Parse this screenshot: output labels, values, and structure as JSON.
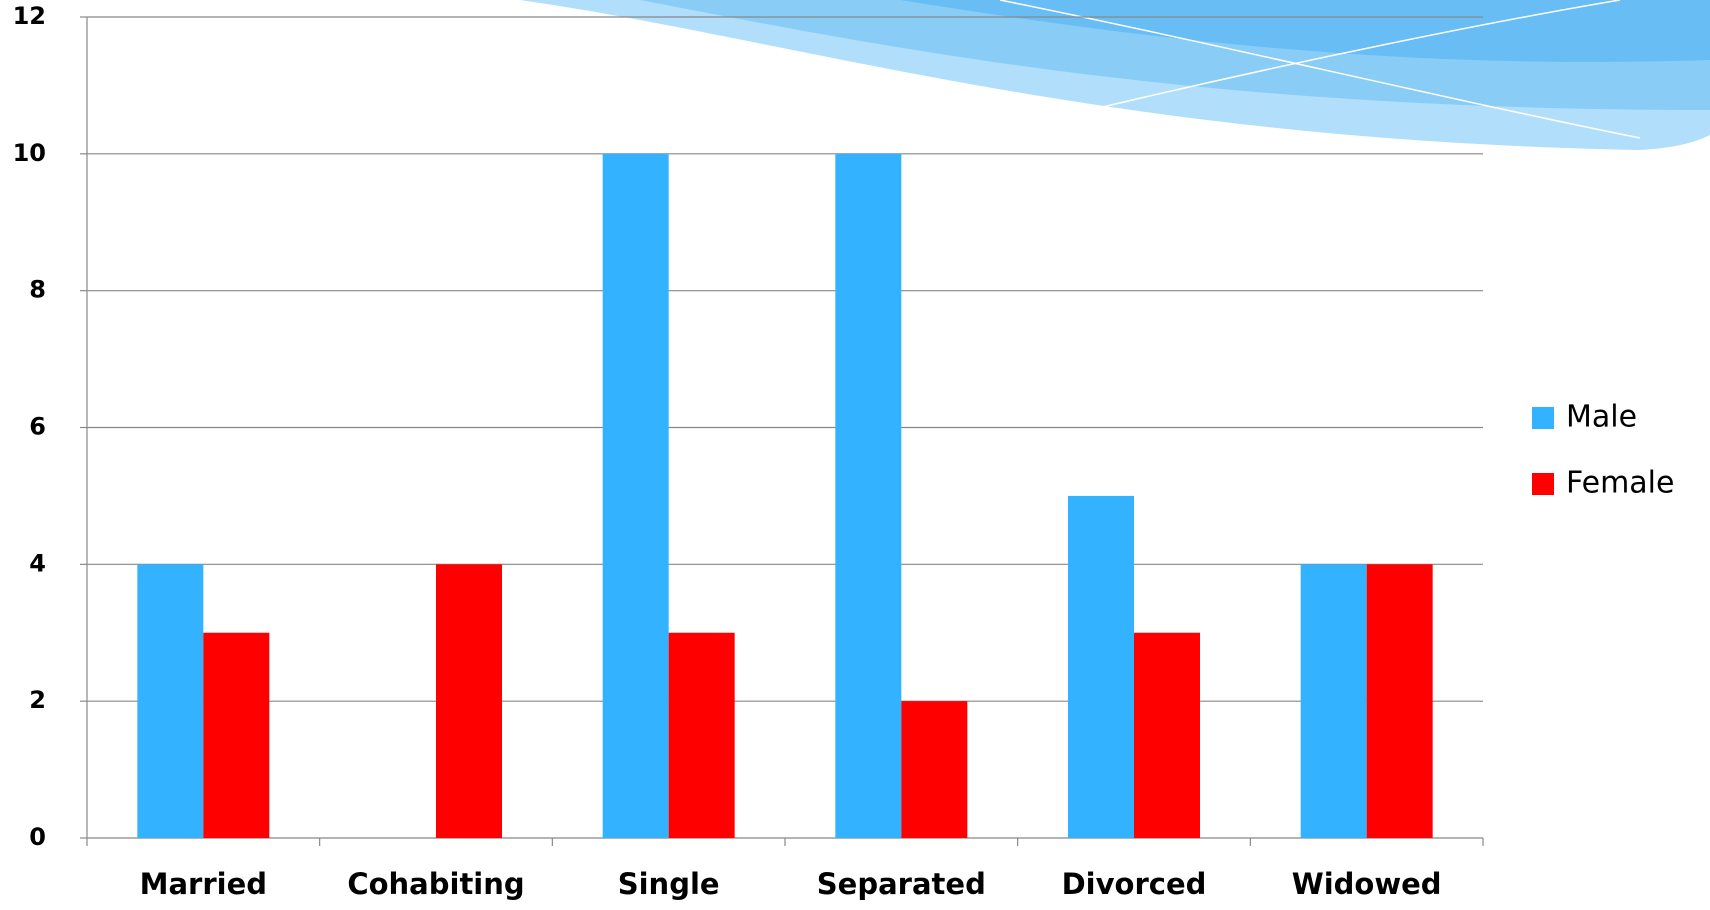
{
  "chart_data": {
    "type": "bar",
    "categories": [
      "Married",
      "Cohabiting",
      "Single",
      "Separated",
      "Divorced",
      "Widowed"
    ],
    "series": [
      {
        "name": "Male",
        "color": "#33b3ff",
        "values": [
          4,
          0,
          10,
          10,
          5,
          4
        ]
      },
      {
        "name": "Female",
        "color": "#ff0000",
        "values": [
          3,
          4,
          3,
          2,
          3,
          4
        ]
      }
    ],
    "ylim": [
      0,
      12
    ],
    "yticks": [
      0,
      2,
      4,
      6,
      8,
      10,
      12
    ],
    "grid": true,
    "legend": "right"
  }
}
